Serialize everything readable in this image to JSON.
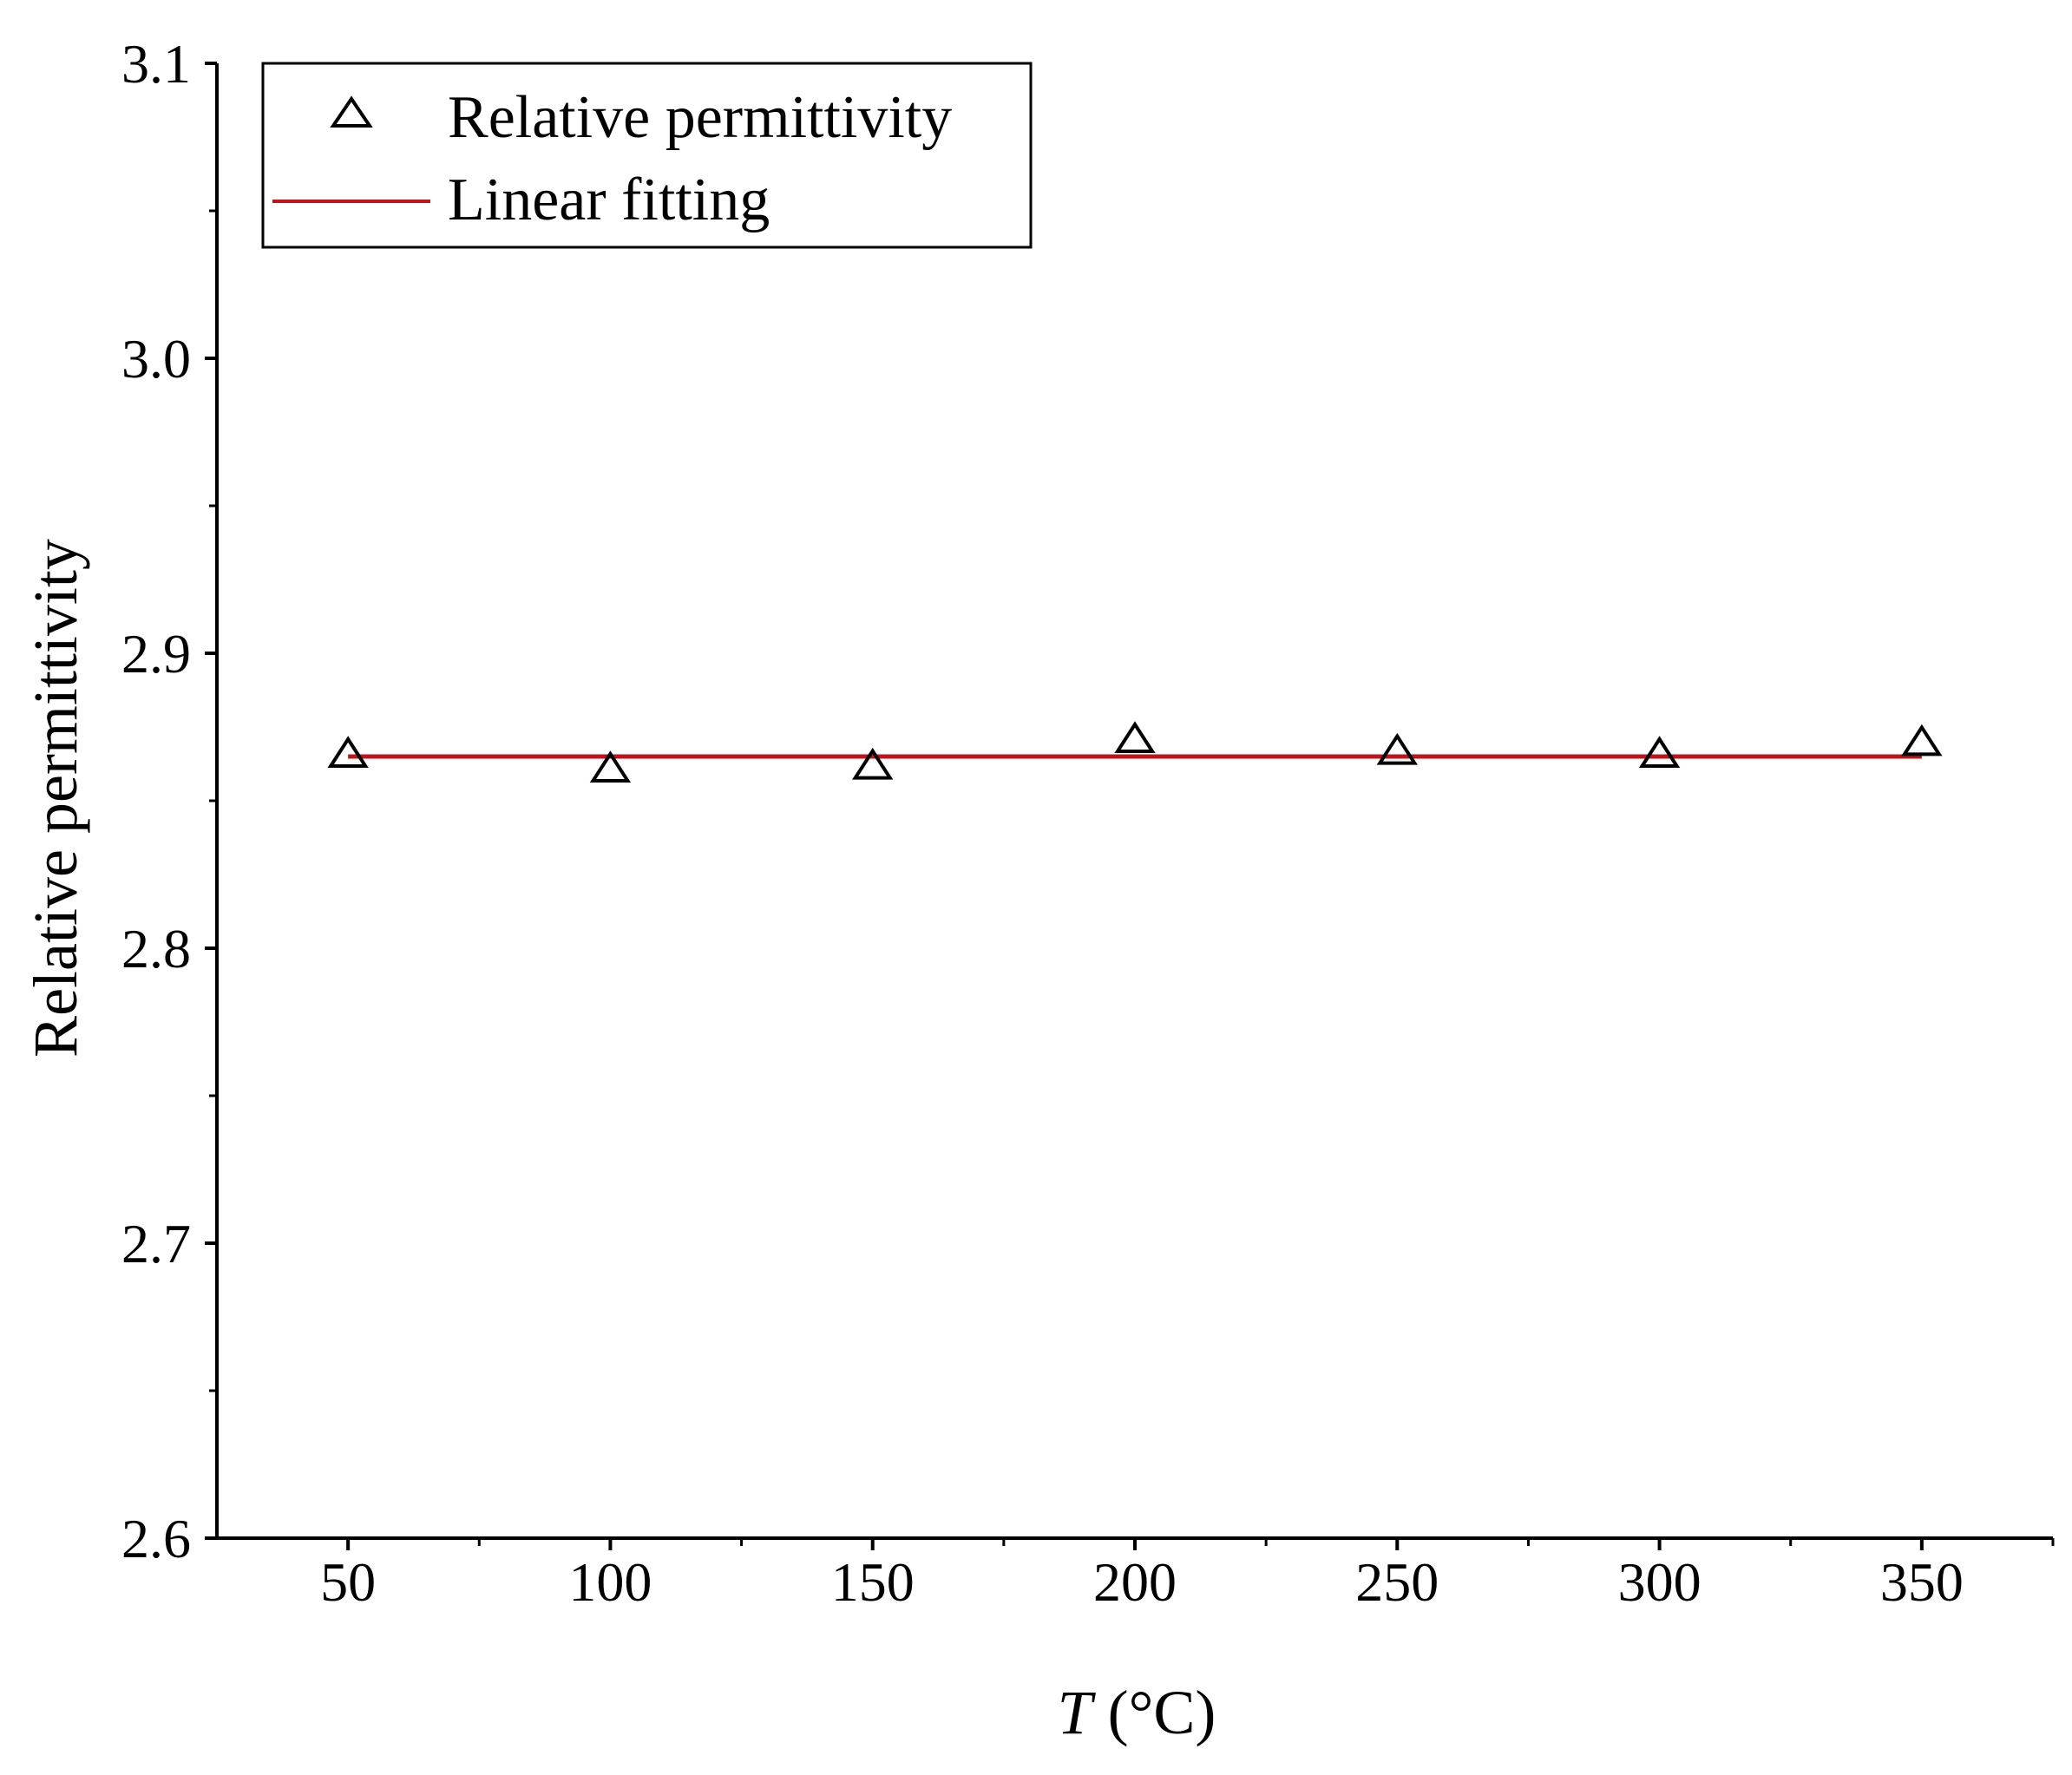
{
  "chart_data": {
    "type": "scatter",
    "xlabel_italic": "T",
    "xlabel_unit": " (°C)",
    "ylabel": "Relative permittivity",
    "xlim": [
      25,
      375
    ],
    "ylim": [
      2.6,
      3.1
    ],
    "x_ticks": [
      50,
      100,
      150,
      200,
      250,
      300,
      350
    ],
    "x_tick_labels": [
      "50",
      "100",
      "150",
      "200",
      "250",
      "300",
      "350"
    ],
    "x_minor_ticks": [
      75,
      125,
      175,
      225,
      275,
      325,
      375
    ],
    "y_ticks": [
      2.6,
      2.7,
      2.8,
      2.9,
      3.0,
      3.1
    ],
    "y_tick_labels": [
      "2.6",
      "2.7",
      "2.8",
      "2.9",
      "3.0",
      "3.1"
    ],
    "y_minor_ticks": [
      2.65,
      2.75,
      2.85,
      2.95,
      3.05
    ],
    "grid": false,
    "legend_position": "top-left",
    "series": [
      {
        "name": "Relative permittivity",
        "kind": "scatter",
        "marker": "open-triangle",
        "color": "#000000",
        "x": [
          50,
          100,
          150,
          200,
          250,
          300,
          350
        ],
        "y": [
          2.865,
          2.86,
          2.861,
          2.87,
          2.866,
          2.865,
          2.869
        ]
      },
      {
        "name": "Linear fitting",
        "kind": "line",
        "color": "#c0141c",
        "x": [
          50,
          350
        ],
        "y": [
          2.865,
          2.865
        ]
      }
    ]
  }
}
